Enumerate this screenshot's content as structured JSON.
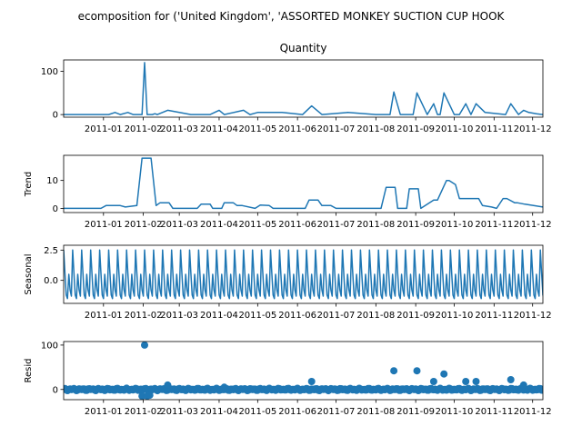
{
  "suptitle": "ecomposition for ('United Kingdom', 'ASSORTED MONKEY SUCTION CUP HOOK",
  "x_tick_labels": [
    "2011-01",
    "2011-02",
    "2011-03",
    "2011-04",
    "2011-05",
    "2011-06",
    "2011-07",
    "2011-08",
    "2011-09",
    "2011-10",
    "2011-11",
    "2011-12"
  ],
  "colors": {
    "series": "#1f77b4",
    "axes": "#000000",
    "background": "#ffffff"
  },
  "chart_data": [
    {
      "type": "line",
      "title": "Quantity",
      "ylabel": "",
      "xlim": [
        "2010-12-01",
        "2011-12-09"
      ],
      "ylim": [
        -6,
        126
      ],
      "yticks": [
        0,
        100
      ],
      "grid": false,
      "x": [
        "2010-12-01",
        "2010-12-15",
        "2010-12-20",
        "2010-12-25",
        "2011-01-05",
        "2011-01-10",
        "2011-01-14",
        "2011-01-20",
        "2011-01-24",
        "2011-01-31",
        "2011-02-02",
        "2011-02-04",
        "2011-02-08",
        "2011-02-10",
        "2011-02-12",
        "2011-02-20",
        "2011-03-10",
        "2011-03-20",
        "2011-03-25",
        "2011-04-01",
        "2011-04-05",
        "2011-04-20",
        "2011-04-25",
        "2011-05-01",
        "2011-05-20",
        "2011-06-05",
        "2011-06-12",
        "2011-06-20",
        "2011-07-10",
        "2011-08-01",
        "2011-08-12",
        "2011-08-15",
        "2011-08-20",
        "2011-08-27",
        "2011-08-30",
        "2011-09-02",
        "2011-09-10",
        "2011-09-15",
        "2011-09-18",
        "2011-09-20",
        "2011-09-23",
        "2011-10-01",
        "2011-10-05",
        "2011-10-10",
        "2011-10-14",
        "2011-10-18",
        "2011-10-25",
        "2011-11-10",
        "2011-11-14",
        "2011-11-20",
        "2011-11-24",
        "2011-11-28",
        "2011-12-04",
        "2011-12-09"
      ],
      "y": [
        0,
        0,
        0,
        0,
        0,
        5,
        0,
        5,
        0,
        0,
        120,
        0,
        0,
        2,
        0,
        10,
        0,
        0,
        0,
        10,
        0,
        10,
        0,
        5,
        5,
        0,
        20,
        0,
        5,
        0,
        0,
        52,
        0,
        0,
        0,
        50,
        0,
        25,
        0,
        0,
        50,
        0,
        0,
        25,
        0,
        25,
        5,
        0,
        25,
        0,
        10,
        5,
        2,
        0
      ]
    },
    {
      "type": "line",
      "ylabel": "Trend",
      "xlim": [
        "2010-12-01",
        "2011-12-09"
      ],
      "ylim": [
        -1.5,
        19
      ],
      "yticks": [
        0,
        10
      ],
      "grid": false,
      "x": [
        "2010-12-01",
        "2010-12-30",
        "2011-01-03",
        "2011-01-14",
        "2011-01-18",
        "2011-01-27",
        "2011-01-31",
        "2011-02-07",
        "2011-02-11",
        "2011-02-14",
        "2011-02-21",
        "2011-02-24",
        "2011-03-15",
        "2011-03-18",
        "2011-03-25",
        "2011-03-27",
        "2011-04-03",
        "2011-04-05",
        "2011-04-12",
        "2011-04-15",
        "2011-04-19",
        "2011-04-29",
        "2011-05-03",
        "2011-05-10",
        "2011-05-13",
        "2011-06-07",
        "2011-06-10",
        "2011-06-17",
        "2011-06-20",
        "2011-06-27",
        "2011-07-01",
        "2011-08-05",
        "2011-08-09",
        "2011-08-16",
        "2011-08-18",
        "2011-08-25",
        "2011-08-27",
        "2011-09-03",
        "2011-09-05",
        "2011-09-15",
        "2011-09-18",
        "2011-09-25",
        "2011-09-27",
        "2011-10-02",
        "2011-10-05",
        "2011-10-20",
        "2011-10-23",
        "2011-10-30",
        "2011-11-03",
        "2011-11-08",
        "2011-11-11",
        "2011-11-17",
        "2011-11-19",
        "2011-11-25",
        "2011-12-09"
      ],
      "y": [
        0,
        0,
        1,
        1,
        0.5,
        1,
        18,
        18,
        1,
        2,
        2,
        0,
        0,
        1.5,
        1.5,
        0,
        0,
        2,
        2,
        1,
        1,
        0,
        1.2,
        1,
        0,
        0,
        3,
        3,
        1,
        1,
        0,
        0,
        7.5,
        7.5,
        0,
        0,
        7,
        7,
        0,
        3,
        3,
        10,
        10,
        8.5,
        3.5,
        3.5,
        1,
        0.5,
        0,
        3.5,
        3.5,
        2,
        2,
        1.5,
        0.5
      ]
    },
    {
      "type": "line",
      "ylabel": "Seasonal",
      "xlim": [
        "2010-12-01",
        "2011-12-09"
      ],
      "ylim": [
        -1.9,
        2.9
      ],
      "yticks": [
        0.0,
        2.5
      ],
      "grid": false,
      "period_days": 7,
      "x": [
        0,
        1,
        2,
        3,
        4,
        5,
        6
      ],
      "y": [
        2.5,
        0.6,
        -1.2,
        -1.5,
        0.5,
        -0.8,
        -1.3
      ]
    },
    {
      "type": "scatter",
      "ylabel": "Resid",
      "xlim": [
        "2010-12-01",
        "2011-12-09"
      ],
      "ylim": [
        -23,
        108
      ],
      "yticks": [
        0,
        100
      ],
      "grid": false,
      "x": [
        "2011-01-31",
        "2011-02-02",
        "2011-02-04",
        "2011-02-06",
        "2011-02-20",
        "2011-04-05",
        "2011-06-12",
        "2011-08-15",
        "2011-09-02",
        "2011-09-15",
        "2011-09-23",
        "2011-10-10",
        "2011-10-18",
        "2011-11-14",
        "2011-11-24"
      ],
      "y": [
        -15,
        100,
        -15,
        -13,
        10,
        5,
        18,
        42,
        42,
        18,
        35,
        18,
        18,
        22,
        10
      ]
    }
  ]
}
